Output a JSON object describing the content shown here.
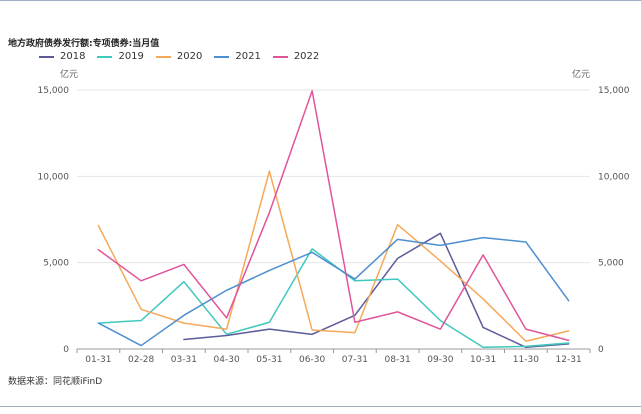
{
  "title": "地方政府债券发行额:专项债券:当月值",
  "unit_left": "亿元",
  "unit_right": "亿元",
  "source": "数据来源：同花顺iFinD",
  "chart_data": {
    "type": "line",
    "title": "地方政府债券发行额:专项债券:当月值",
    "xlabel": "",
    "ylabel": "亿元",
    "categories": [
      "01-31",
      "02-28",
      "03-31",
      "04-30",
      "05-31",
      "06-30",
      "07-31",
      "08-31",
      "09-30",
      "10-31",
      "11-30",
      "12-31"
    ],
    "ylim": [
      0,
      15000
    ],
    "yticks": [
      0,
      5000,
      10000,
      15000
    ],
    "ytick_labels": [
      "0",
      "5,000",
      "10,000",
      "15,000"
    ],
    "grid": true,
    "legend_position": "top-left",
    "series": [
      {
        "name": "2018",
        "color": "#5b5b9a",
        "values": [
          null,
          null,
          550,
          780,
          1150,
          850,
          1950,
          5250,
          6700,
          1250,
          100,
          300
        ]
      },
      {
        "name": "2019",
        "color": "#3fc8bd",
        "values": [
          1500,
          1650,
          3900,
          850,
          1550,
          5800,
          3950,
          4050,
          1650,
          100,
          150,
          350
        ]
      },
      {
        "name": "2020",
        "color": "#f5a95a",
        "values": [
          7150,
          2300,
          1500,
          1150,
          10300,
          1100,
          950,
          7200,
          5100,
          2900,
          450,
          1050
        ]
      },
      {
        "name": "2021",
        "color": "#4d8fd0",
        "values": [
          1500,
          200,
          1950,
          3400,
          4550,
          5600,
          4050,
          6350,
          6000,
          6450,
          6200,
          2800
        ]
      },
      {
        "name": "2022",
        "color": "#e0559a",
        "values": [
          5750,
          3950,
          4900,
          1800,
          7900,
          14950,
          1550,
          2150,
          1150,
          5450,
          1150,
          500
        ]
      }
    ]
  }
}
